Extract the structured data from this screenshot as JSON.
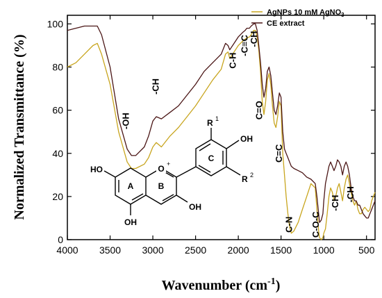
{
  "chart_data": {
    "type": "line",
    "xlabel": "Wavenumber",
    "xlabel_unit_open": " (cm",
    "xlabel_unit_exp": "-1",
    "xlabel_unit_close": ")",
    "ylabel": "Normalized Transmittance (%)",
    "xlim": [
      4000,
      400
    ],
    "ylim": [
      0,
      104
    ],
    "x_ticks": [
      4000,
      3500,
      3000,
      2500,
      2000,
      1500,
      1000,
      500
    ],
    "y_ticks": [
      0,
      20,
      40,
      60,
      80,
      100
    ],
    "legend_position": "top-right",
    "colors": {
      "gold": "#c8a51e",
      "brown": "#4a1515"
    },
    "series": [
      {
        "name": "AgNPs 10 mM AgNO",
        "name_sub": "3",
        "color": "#c8a51e",
        "x": [
          4000,
          3900,
          3800,
          3700,
          3650,
          3600,
          3500,
          3400,
          3300,
          3250,
          3200,
          3100,
          3050,
          3000,
          2960,
          2900,
          2800,
          2700,
          2600,
          2500,
          2400,
          2300,
          2200,
          2150,
          2120,
          2100,
          2050,
          2000,
          1950,
          1920,
          1900,
          1870,
          1850,
          1820,
          1800,
          1780,
          1760,
          1740,
          1720,
          1700,
          1680,
          1660,
          1640,
          1620,
          1600,
          1580,
          1560,
          1540,
          1520,
          1500,
          1480,
          1460,
          1440,
          1420,
          1400,
          1380,
          1350,
          1300,
          1250,
          1200,
          1150,
          1100,
          1080,
          1060,
          1050,
          1030,
          1010,
          1000,
          980,
          960,
          940,
          920,
          900,
          880,
          860,
          840,
          820,
          800,
          780,
          760,
          740,
          720,
          700,
          680,
          660,
          640,
          620,
          600,
          580,
          560,
          540,
          520,
          500,
          480,
          460,
          440,
          420,
          400
        ],
        "y": [
          80,
          82,
          86,
          90,
          91,
          86,
          72,
          50,
          36,
          33,
          33,
          35,
          38,
          43,
          45,
          43,
          48,
          52,
          57,
          62,
          68,
          74,
          79,
          86,
          87,
          84,
          87,
          90,
          92,
          93,
          93.5,
          94,
          95,
          97,
          97,
          94,
          88,
          78,
          64,
          58,
          64,
          74,
          77,
          72,
          62,
          54,
          52,
          57,
          64,
          62,
          40,
          30,
          20,
          12,
          6,
          3,
          4,
          8,
          14,
          20,
          26,
          24,
          14,
          4,
          1,
          0,
          1,
          3,
          5,
          12,
          20,
          24,
          22,
          18,
          20,
          24,
          26,
          22,
          18,
          24,
          28,
          30,
          26,
          22,
          18,
          16,
          18,
          14,
          12,
          12,
          14,
          15,
          14,
          13,
          14,
          18,
          20,
          22
        ]
      },
      {
        "name": "CE extract",
        "color": "#4a1515",
        "x": [
          4000,
          3900,
          3800,
          3700,
          3650,
          3600,
          3500,
          3400,
          3300,
          3250,
          3200,
          3100,
          3050,
          3000,
          2960,
          2900,
          2800,
          2700,
          2600,
          2500,
          2400,
          2300,
          2200,
          2150,
          2120,
          2100,
          2050,
          2000,
          1950,
          1920,
          1900,
          1870,
          1850,
          1820,
          1800,
          1780,
          1760,
          1740,
          1720,
          1700,
          1680,
          1660,
          1640,
          1620,
          1600,
          1580,
          1560,
          1540,
          1520,
          1500,
          1480,
          1460,
          1440,
          1420,
          1400,
          1380,
          1350,
          1300,
          1250,
          1200,
          1150,
          1100,
          1080,
          1060,
          1050,
          1030,
          1010,
          1000,
          980,
          960,
          940,
          920,
          900,
          880,
          860,
          840,
          820,
          800,
          780,
          760,
          740,
          720,
          700,
          680,
          660,
          640,
          620,
          600,
          580,
          560,
          540,
          520,
          500,
          480,
          460,
          440,
          420,
          400
        ],
        "y": [
          97,
          98,
          99,
          99,
          99,
          95,
          80,
          56,
          42,
          39,
          39,
          43,
          48,
          55,
          57,
          56,
          59,
          62,
          67,
          72,
          78,
          82,
          86,
          91,
          90,
          88,
          91,
          94,
          96,
          97,
          98,
          98,
          99,
          100,
          100,
          97,
          90,
          82,
          72,
          66,
          70,
          78,
          80,
          76,
          68,
          60,
          58,
          62,
          68,
          66,
          50,
          42,
          40,
          38,
          36,
          34,
          33,
          32,
          31,
          29,
          28,
          26,
          20,
          12,
          8,
          9,
          12,
          18,
          26,
          30,
          34,
          36,
          34,
          32,
          34,
          37,
          36,
          34,
          30,
          34,
          36,
          34,
          30,
          24,
          20,
          18,
          18,
          16,
          16,
          14,
          12,
          11,
          10,
          10,
          12,
          14,
          16,
          18
        ]
      }
    ],
    "annotations": [
      {
        "text": "-OH",
        "wavenumber": 3280,
        "y": 55
      },
      {
        "text": "-CH",
        "wavenumber": 2930,
        "y": 71
      },
      {
        "text": "C-H",
        "wavenumber": 2030,
        "y": 83
      },
      {
        "text": "-C≡C",
        "wavenumber": 1890,
        "y": 90
      },
      {
        "text": "-CH",
        "wavenumber": 1780,
        "y": 93
      },
      {
        "text": "C=O",
        "wavenumber": 1720,
        "y": 60
      },
      {
        "text": "C=C",
        "wavenumber": 1490,
        "y": 40
      },
      {
        "text": "C-N",
        "wavenumber": 1370,
        "y": 7
      },
      {
        "text": "C-O-C",
        "wavenumber": 1060,
        "y": 7
      },
      {
        "text": "-CH",
        "wavenumber": 830,
        "y": 17
      },
      {
        "text": "-CH",
        "wavenumber": 650,
        "y": 21
      }
    ],
    "molecule": {
      "ring_labels": [
        "A",
        "B",
        "C"
      ],
      "atom_labels": [
        "HO",
        "OH",
        "OH",
        "OH",
        "O"
      ],
      "charge": "+",
      "substituents": [
        {
          "symbol": "R",
          "index": "1"
        },
        {
          "symbol": "R",
          "index": "2"
        }
      ]
    }
  }
}
